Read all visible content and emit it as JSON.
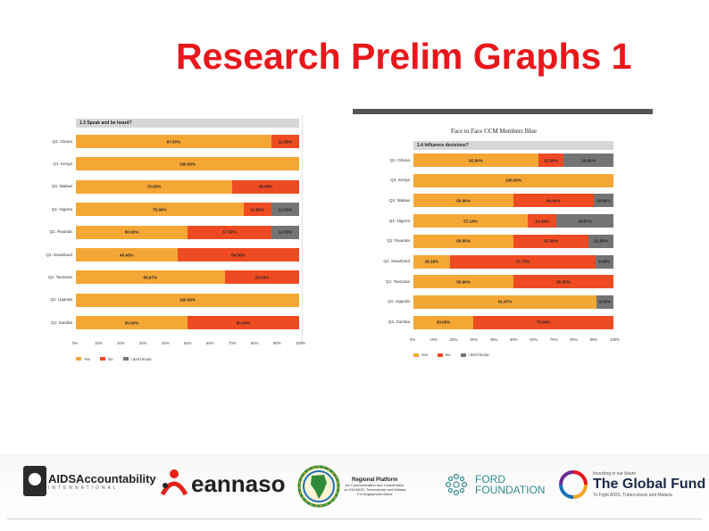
{
  "title": "Research Prelim Graphs 1",
  "colors": {
    "yes": "#f5a735",
    "no": "#ef4b23",
    "dont_know": "#747474"
  },
  "chart_data": [
    {
      "type": "bar",
      "title": "",
      "question": "1.3 Speak and be heard?",
      "categories": [
        "Q1: Ghana",
        "Q1: Kenya",
        "Q1: Malawi",
        "Q1: Nigeria",
        "Q1: Rwanda",
        "Q1: Swaziland",
        "Q1: Tanzania",
        "Q1: Uganda",
        "Q1: Zambia"
      ],
      "series": [
        {
          "name": "Yes",
          "values": [
            87.5,
            100,
            70,
            75,
            50,
            45.45,
            66.67,
            100,
            50
          ],
          "labels": [
            "87.50%",
            "100.00%",
            "70.00%",
            "75.00%",
            "50.00%",
            "45.45%",
            "66.67%",
            "100.00%",
            "50.00%"
          ]
        },
        {
          "name": "No",
          "values": [
            12.5,
            0,
            30,
            12.5,
            37.5,
            54.55,
            33.33,
            0,
            50
          ],
          "labels": [
            "12.50%",
            "",
            "30.00%",
            "12.50%",
            "37.50%",
            "54.55%",
            "33.33%",
            "",
            "50.00%"
          ]
        },
        {
          "name": "I don't know",
          "values": [
            0,
            0,
            0,
            12.5,
            12.5,
            0,
            0,
            0,
            0
          ],
          "labels": [
            "",
            "",
            "",
            "12.50%",
            "12.50%",
            "",
            "",
            "",
            ""
          ]
        }
      ],
      "xticks": [
        "0%",
        "10%",
        "20%",
        "30%",
        "40%",
        "50%",
        "60%",
        "70%",
        "80%",
        "90%",
        "100%"
      ],
      "xlim": [
        0,
        100
      ],
      "stacked": true,
      "orientation": "horizontal",
      "legend": [
        "Yes",
        "No",
        "I don't know"
      ],
      "legend_position": "bottom-left"
    },
    {
      "type": "bar",
      "title": "Face to Face CCM Members Blue",
      "question": "1.4 Influence decisions?",
      "categories": [
        "Q1: Ghana",
        "Q1: Kenya",
        "Q1: Malawi",
        "Q1: Nigeria",
        "Q1: Rwanda",
        "Q1: Swaziland",
        "Q1: Tanzania",
        "Q1: Uganda",
        "Q1: Zambia"
      ],
      "series": [
        {
          "name": "Yes",
          "values": [
            62.5,
            100,
            50,
            57.14,
            50,
            18.18,
            50,
            91.67,
            30
          ],
          "labels": [
            "62.50%",
            "100.00%",
            "50.00%",
            "57.14%",
            "50.00%",
            "18.18%",
            "50.00%",
            "91.67%",
            "30.00%"
          ]
        },
        {
          "name": "No",
          "values": [
            12.5,
            0,
            40,
            14.29,
            37.5,
            72.73,
            50,
            0,
            70
          ],
          "labels": [
            "12.50%",
            "",
            "40.00%",
            "14.29%",
            "37.50%",
            "72.73%",
            "50.00%",
            "",
            "70.00%"
          ]
        },
        {
          "name": "I don't know",
          "values": [
            25,
            0,
            10,
            28.57,
            12.5,
            9.09,
            0,
            8.33,
            0
          ],
          "labels": [
            "25.00%",
            "",
            "10.00%",
            "28.57%",
            "12.50%",
            "9.09%",
            "",
            "8.33%",
            ""
          ]
        }
      ],
      "xticks": [
        "0%",
        "10%",
        "20%",
        "30%",
        "40%",
        "50%",
        "60%",
        "70%",
        "80%",
        "90%",
        "100%"
      ],
      "xlim": [
        0,
        100
      ],
      "stacked": true,
      "orientation": "horizontal",
      "legend": [
        "Yes",
        "No",
        "I don't know"
      ],
      "legend_position": "bottom-left"
    }
  ],
  "logos": {
    "aids_accountability": {
      "name": "AIDSAccountability",
      "sub": "INTERNATIONAL"
    },
    "eannaso": {
      "name": "eannaso"
    },
    "regional_platform": {
      "line1": "Regional Platform",
      "line2": "for Communication and Coordination",
      "line3": "on HIV/AIDS, Tuberculosis and Malaria",
      "line4": "For Anglophone Africa"
    },
    "ford": {
      "line1": "FORD",
      "line2": "FOUNDATION"
    },
    "global_fund": {
      "small": "Investing in our future",
      "name": "The Global Fund",
      "tagline": "To Fight AIDS, Tuberculosis and Malaria"
    }
  }
}
